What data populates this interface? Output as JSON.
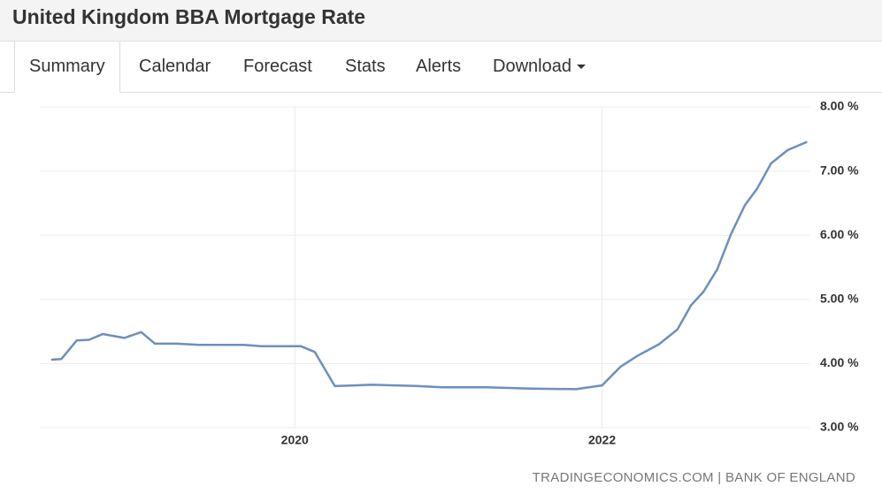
{
  "header": {
    "title": "United Kingdom BBA Mortgage Rate"
  },
  "tabs": [
    "Summary",
    "Calendar",
    "Forecast",
    "Stats",
    "Alerts",
    "Download"
  ],
  "source": "TRADINGECONOMICS.COM | BANK OF ENGLAND",
  "chart_data": {
    "type": "line",
    "x": [
      2018.42,
      2018.48,
      2018.58,
      2018.66,
      2018.75,
      2018.89,
      2019.0,
      2019.09,
      2019.23,
      2019.38,
      2019.67,
      2019.78,
      2020.04,
      2020.13,
      2020.26,
      2020.39,
      2020.5,
      2020.79,
      2020.96,
      2021.25,
      2021.54,
      2021.83,
      2022.0,
      2022.12,
      2022.23,
      2022.37,
      2022.49,
      2022.58,
      2022.66,
      2022.75,
      2022.84,
      2022.93,
      2023.01,
      2023.1,
      2023.21,
      2023.33
    ],
    "series": [
      {
        "name": "Mortgage Rate",
        "color": "#6d8fbd",
        "values": [
          4.06,
          4.07,
          4.36,
          4.37,
          4.46,
          4.4,
          4.49,
          4.31,
          4.31,
          4.29,
          4.29,
          4.27,
          4.27,
          4.18,
          3.65,
          3.66,
          3.67,
          3.65,
          3.63,
          3.63,
          3.61,
          3.6,
          3.66,
          3.95,
          4.12,
          4.3,
          4.53,
          4.91,
          5.12,
          5.47,
          6.02,
          6.47,
          6.73,
          7.12,
          7.33,
          7.45
        ]
      }
    ],
    "xlim": [
      2018.34,
      2023.35
    ],
    "xticks": [
      2020,
      2022
    ],
    "ylim": [
      3,
      8
    ],
    "yticks": [
      {
        "value": 3,
        "label": "3.00 %"
      },
      {
        "value": 4,
        "label": "4.00 %"
      },
      {
        "value": 5,
        "label": "5.00 %"
      },
      {
        "value": 6,
        "label": "6.00 %"
      },
      {
        "value": 7,
        "label": "7.00 %"
      },
      {
        "value": 8,
        "label": "8.00 %"
      }
    ],
    "grid": true
  }
}
